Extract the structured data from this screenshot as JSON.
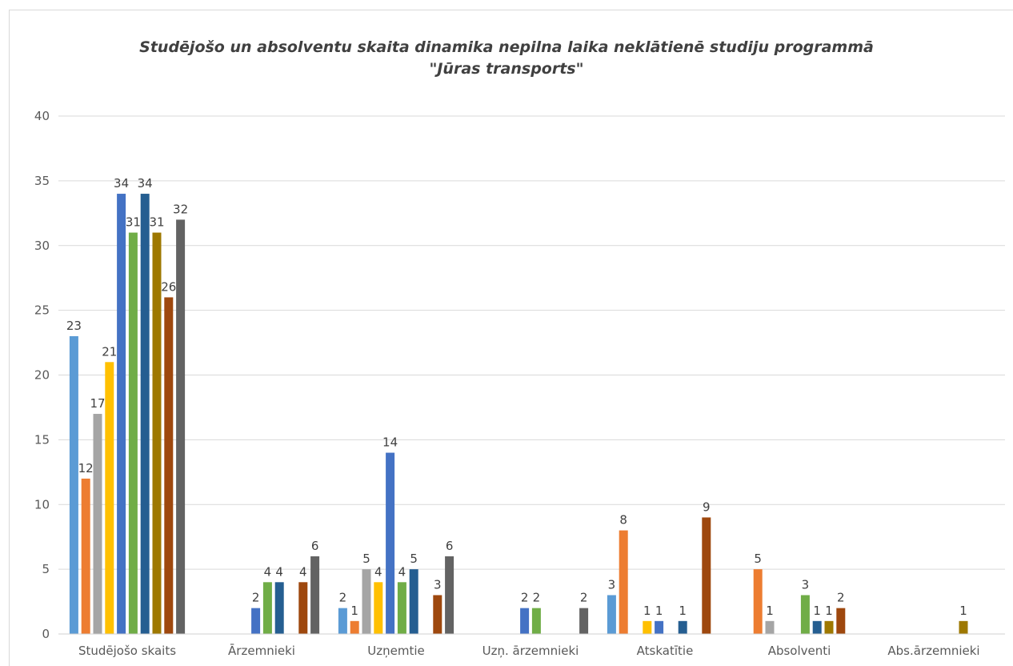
{
  "chart_data": {
    "type": "bar",
    "title_lines": [
      "Studējošo un absolventu skaita dinamika nepilna laika neklātienē studiju programmā",
      "\"Jūras transports\""
    ],
    "xlabel": "",
    "ylabel": "",
    "ylim": [
      0,
      40
    ],
    "yticks": [
      0,
      5,
      10,
      15,
      20,
      25,
      30,
      35,
      40
    ],
    "grid": true,
    "legend": "none",
    "categories": [
      "Studējošo skaits",
      "Ārzemnieki",
      "Uzņemtie",
      "Uzņ.  ārzemnieki",
      "Atskatītie",
      "Absolventi",
      "Abs.ārzemnieki"
    ],
    "series": [
      {
        "color": "#5b9bd5",
        "values": [
          23,
          null,
          2,
          null,
          3,
          null,
          null
        ]
      },
      {
        "color": "#ed7d31",
        "values": [
          12,
          null,
          1,
          null,
          8,
          5,
          null
        ]
      },
      {
        "color": "#a5a5a5",
        "values": [
          17,
          null,
          5,
          null,
          null,
          1,
          null
        ]
      },
      {
        "color": "#ffc000",
        "values": [
          21,
          null,
          4,
          null,
          1,
          null,
          null
        ]
      },
      {
        "color": "#4472c4",
        "values": [
          34,
          2,
          14,
          2,
          1,
          null,
          null
        ]
      },
      {
        "color": "#70ad47",
        "values": [
          31,
          4,
          4,
          2,
          null,
          3,
          null
        ]
      },
      {
        "color": "#255e91",
        "values": [
          34,
          4,
          5,
          null,
          1,
          1,
          null
        ]
      },
      {
        "color": "#9e7800",
        "values": [
          31,
          null,
          null,
          null,
          null,
          1,
          1
        ]
      },
      {
        "color": "#9e480e",
        "values": [
          26,
          4,
          3,
          null,
          9,
          2,
          null
        ]
      },
      {
        "color": "#636363",
        "values": [
          32,
          6,
          6,
          2,
          null,
          null,
          null
        ]
      }
    ],
    "colors": {
      "grid": "#d9d9d9",
      "axis_text": "#595959",
      "label_text": "#404040"
    }
  }
}
